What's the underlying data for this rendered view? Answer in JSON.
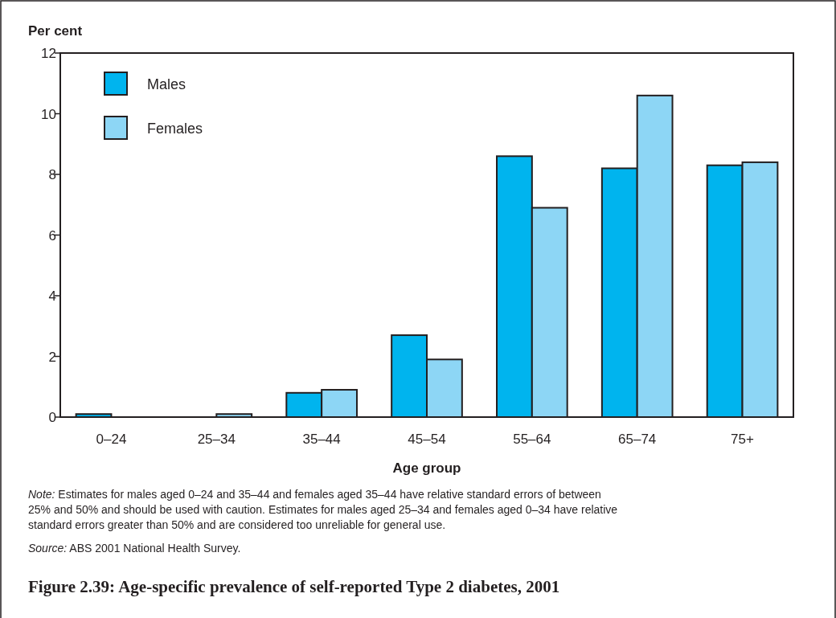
{
  "chart_data": {
    "type": "bar",
    "title": "Figure 2.39: Age-specific prevalence of self-reported Type 2 diabetes, 2001",
    "xlabel": "Age group",
    "ylabel": "Per cent",
    "categories": [
      "0–24",
      "25–34",
      "35–44",
      "45–54",
      "55–64",
      "65–74",
      "75+"
    ],
    "series": [
      {
        "name": "Males",
        "color": "#00b4ee",
        "values": [
          0.1,
          0,
          0.8,
          2.7,
          8.6,
          8.2,
          8.3
        ]
      },
      {
        "name": "Females",
        "color": "#8dd6f5",
        "values": [
          0,
          0.1,
          0.9,
          1.9,
          6.9,
          10.6,
          8.4
        ]
      }
    ],
    "ylim": [
      0,
      12
    ],
    "yticks": [
      0,
      2,
      4,
      6,
      8,
      10,
      12
    ],
    "grid": false,
    "legend": "top left",
    "annotations": [
      "Note: Estimates for males aged 0–24 and 35–44 and females aged 35–44 have relative standard errors of between 25% and 50% and should be used with caution. Estimates for males aged 25–34 and females aged 0–34 have relative standard errors greater than 50% and are considered too unreliable for general use.",
      "Source: ABS 2001 National Health Survey."
    ]
  }
}
